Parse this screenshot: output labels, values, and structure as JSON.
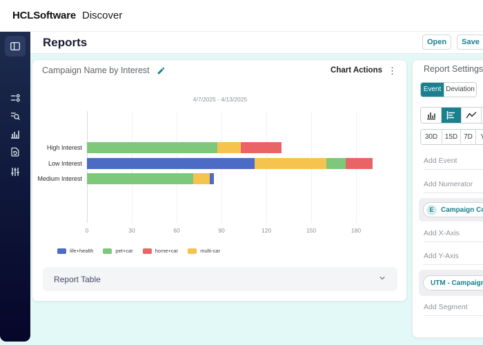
{
  "header": {
    "logo_hcl": "HCL",
    "logo_software": "Software",
    "product": "Discover"
  },
  "page": {
    "title": "Reports",
    "buttons": {
      "open": "Open",
      "save": "Save"
    }
  },
  "sidebar": {
    "icons": [
      "dashboard-icon",
      "segments-icon",
      "search-query-icon",
      "bar-chart-icon",
      "session-replay-icon",
      "filter-sliders-icon"
    ],
    "selected": "dashboard-icon"
  },
  "chart_card": {
    "actions_label": "Chart Actions",
    "report_table_label": "Report Table"
  },
  "chart_data": {
    "type": "bar",
    "orientation": "horizontal",
    "stacked": true,
    "title": "Campaign Name by Interest",
    "subtitle_date_range": "4/7/2025 - 4/13/2025",
    "categories": [
      "High Interest",
      "Low Interest",
      "Medium Interest"
    ],
    "series_colors": {
      "life+health": "#4C6BC5",
      "pet+car": "#7EC87B",
      "home+car": "#E96565",
      "multi-car": "#F5C34E"
    },
    "bars": [
      {
        "category": "High Interest",
        "segments": [
          {
            "name": "pet+car",
            "value": 87
          },
          {
            "name": "multi-car",
            "value": 16
          },
          {
            "name": "home+car",
            "value": 27
          }
        ]
      },
      {
        "category": "Low Interest",
        "segments": [
          {
            "name": "life+health",
            "value": 112
          },
          {
            "name": "multi-car",
            "value": 48
          },
          {
            "name": "pet+car",
            "value": 13
          },
          {
            "name": "home+car",
            "value": 18
          }
        ]
      },
      {
        "category": "Medium Interest",
        "segments": [
          {
            "name": "pet+car",
            "value": 71
          },
          {
            "name": "multi-car",
            "value": 11
          },
          {
            "name": "life+health",
            "value": 3
          }
        ]
      }
    ],
    "x_ticks": [
      0,
      30,
      60,
      90,
      120,
      150,
      180
    ],
    "xlim": [
      0,
      200
    ],
    "grid": true,
    "legend": [
      "life+health",
      "pet+car",
      "home+car",
      "multi-car"
    ],
    "legend_position": "bottom"
  },
  "settings": {
    "title": "Report Settings",
    "tabs": [
      {
        "label": "Event",
        "active": true
      },
      {
        "label": "Deviation",
        "active": false
      }
    ],
    "chart_types": [
      "vertical-bar-chart-icon",
      "horizontal-bar-chart-icon",
      "line-chart-icon",
      "pie-chart-icon"
    ],
    "selected_chart_type": "horizontal-bar-chart-icon",
    "time_ranges": [
      "30D",
      "15D",
      "7D",
      "Year"
    ],
    "fields": {
      "add_event": "Add Event",
      "add_numerator": "Add Numerator",
      "add_x_axis": "Add X-Axis",
      "add_y_axis": "Add Y-Axis",
      "add_segment": "Add Segment"
    },
    "chips": [
      {
        "badge": "E",
        "label": "Campaign Count"
      },
      {
        "badge": "",
        "label": "UTM - Campaign"
      }
    ],
    "accent_color": "#18808E"
  }
}
